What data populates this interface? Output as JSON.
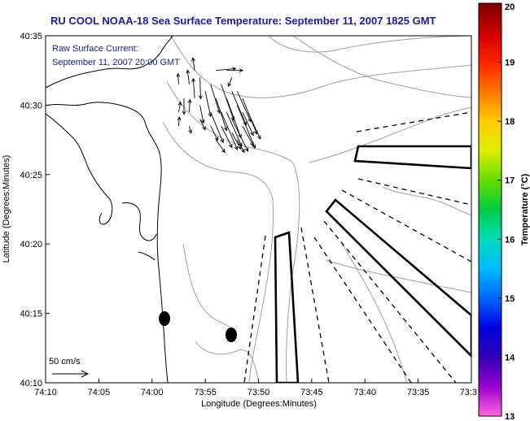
{
  "title": "RU COOL  NOAA-18  Sea Surface Temperature:  September 11, 2007 1825 GMT",
  "annotation": {
    "line1": "Raw Surface Current:",
    "line2": "September 11, 2007 20:00 GMT"
  },
  "scale_label": "50 cm/s",
  "axes": {
    "xlabel": "Longitude (Degrees:Minutes)",
    "ylabel": "Latitude (Degrees:Minutes)",
    "x_ticks": [
      "74:10",
      "74:05",
      "74:00",
      "73:55",
      "73:50",
      "73:45",
      "73:40",
      "73:35",
      "73:3"
    ],
    "y_ticks": [
      "40:35",
      "40:30",
      "40:25",
      "40:20",
      "40:15",
      "40:10"
    ]
  },
  "colorbar": {
    "label": "Temperature (°C)",
    "ticks": [
      "20",
      "19",
      "18",
      "17",
      "16",
      "15",
      "14",
      "13"
    ],
    "colors": [
      "#7a0000",
      "#cc0000",
      "#ff2200",
      "#ff7700",
      "#ffcc00",
      "#ddee00",
      "#66dd00",
      "#00cc44",
      "#00ddbb",
      "#00bbff",
      "#0066ff",
      "#0000dd",
      "#3300bb",
      "#9900cc",
      "#ff66dd"
    ]
  },
  "colors": {
    "title": "#1a1aa6",
    "land_outline": "#000000",
    "bathymetry": "#999999"
  },
  "vectors": [
    [
      73.9583,
      40.525,
      -0.02,
      0.3
    ],
    [
      73.95,
      40.5083,
      0.0,
      -0.45
    ],
    [
      73.9583,
      40.4917,
      0.05,
      0.28
    ],
    [
      73.9417,
      40.525,
      -0.05,
      0.4
    ],
    [
      73.9333,
      40.5083,
      -0.04,
      0.55
    ],
    [
      73.9417,
      40.4917,
      0.02,
      0.35
    ],
    [
      73.925,
      40.5333,
      0.02,
      -0.6
    ],
    [
      73.9167,
      40.5167,
      0.15,
      -0.7
    ],
    [
      73.925,
      40.5,
      0.1,
      -0.5
    ],
    [
      73.9083,
      40.525,
      0.25,
      -0.8
    ],
    [
      73.9,
      40.5083,
      0.3,
      -0.9
    ],
    [
      73.9083,
      40.4917,
      0.35,
      -0.85
    ],
    [
      73.8917,
      40.525,
      0.35,
      -1.0
    ],
    [
      73.8833,
      40.5083,
      0.4,
      -1.1
    ],
    [
      73.8917,
      40.4917,
      0.45,
      -1.05
    ],
    [
      73.875,
      40.5167,
      0.4,
      -0.95
    ],
    [
      73.8667,
      40.5,
      0.5,
      -1.2
    ],
    [
      73.875,
      40.4833,
      0.45,
      -0.9
    ],
    [
      73.8583,
      40.5083,
      0.4,
      -1.0
    ],
    [
      73.85,
      40.4917,
      0.35,
      -0.75
    ],
    [
      73.8583,
      40.475,
      0.3,
      -0.55
    ],
    [
      73.8917,
      40.475,
      0.3,
      -0.6
    ],
    [
      73.875,
      40.4667,
      0.25,
      -0.45
    ],
    [
      73.8667,
      40.4583,
      0.2,
      -0.35
    ],
    [
      73.925,
      40.4833,
      0.15,
      -0.3
    ],
    [
      73.9417,
      40.475,
      0.05,
      -0.2
    ],
    [
      73.9083,
      40.475,
      0.2,
      -0.4
    ],
    [
      73.9,
      40.5417,
      0.55,
      0.05
    ],
    [
      73.8833,
      40.5417,
      0.45,
      0.0
    ],
    [
      73.875,
      40.5333,
      -0.1,
      -0.25
    ],
    [
      73.9333,
      40.5417,
      -0.05,
      0.35
    ],
    [
      73.9,
      40.4583,
      0.25,
      -0.35
    ],
    [
      73.9583,
      40.475,
      0.02,
      0.25
    ],
    [
      73.8583,
      40.4917,
      0.3,
      -0.65
    ],
    [
      73.8667,
      40.5167,
      0.38,
      -0.85
    ],
    [
      73.8833,
      40.4917,
      0.42,
      -0.95
    ]
  ]
}
